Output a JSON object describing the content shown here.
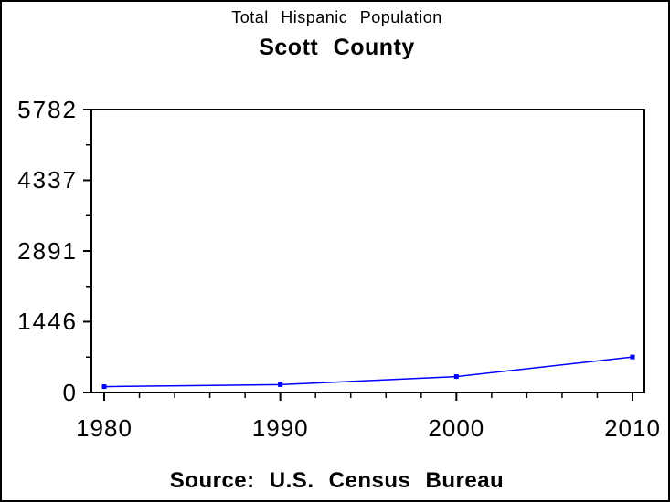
{
  "chart_data": {
    "type": "line",
    "title": "Total Hispanic Population",
    "subtitle": "Scott County",
    "source_note": "Source: U.S. Census Bureau",
    "x": [
      1980,
      1990,
      2000,
      2010
    ],
    "values": [
      120,
      160,
      325,
      725
    ],
    "series": [
      {
        "name": "Total Hispanic Population",
        "values": [
          120,
          160,
          325,
          725
        ]
      }
    ],
    "x_ticks": [
      "1980",
      "1990",
      "2000",
      "2010"
    ],
    "y_ticks": [
      "0",
      "1446",
      "2891",
      "4337",
      "5782"
    ],
    "y_tick_values": [
      0,
      1446,
      2891,
      4337,
      5782
    ],
    "xlim": [
      1980,
      2010
    ],
    "ylim": [
      0,
      5782
    ],
    "x_minor_tick_interval": 2,
    "y_minor_ticks_between_major": 1,
    "grid": false,
    "legend": "none",
    "frame": true,
    "marker": "filled-square",
    "line_color": "#0000ff",
    "text_color": "#000000",
    "background": "#ffffff",
    "border_color": "#000000"
  }
}
